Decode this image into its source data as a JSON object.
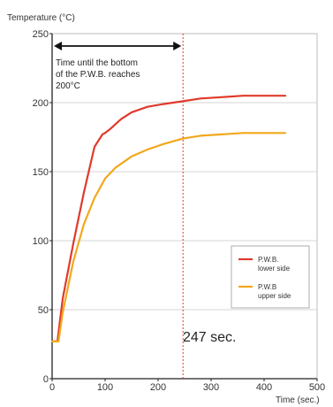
{
  "chart_data": {
    "type": "line",
    "ylabel": "Temperature (°C)",
    "xlabel": "Time (sec.)",
    "xlim": [
      0,
      500
    ],
    "ylim": [
      0,
      250
    ],
    "x_ticks": [
      "0",
      "100",
      "200",
      "300",
      "400",
      "500"
    ],
    "y_ticks": [
      "0",
      "50",
      "100",
      "150",
      "200",
      "250"
    ],
    "grid": "horizontal",
    "legend_position": "lower-right",
    "series": [
      {
        "name": "P.W.B. lower side",
        "color": "#e03a2b",
        "x": [
          0,
          10,
          20,
          40,
          60,
          80,
          95,
          100,
          110,
          130,
          150,
          180,
          210,
          247,
          280,
          320,
          360,
          400,
          440
        ],
        "y": [
          27,
          27,
          58,
          98,
          135,
          168,
          177,
          178,
          181,
          188,
          193,
          197,
          199,
          201,
          203,
          204,
          205,
          205,
          205
        ]
      },
      {
        "name": "P.W.B upper side",
        "color": "#f2a81d",
        "x": [
          0,
          12,
          20,
          40,
          60,
          80,
          100,
          120,
          150,
          180,
          210,
          247,
          280,
          320,
          360,
          400,
          440
        ],
        "y": [
          27,
          27,
          48,
          85,
          112,
          131,
          145,
          153,
          161,
          166,
          170,
          174,
          176,
          177,
          178,
          178,
          178
        ]
      }
    ],
    "annotations": {
      "marker_x": 247,
      "marker_label": "247 sec.",
      "span_text": [
        "Time until the bottom",
        "of the P.W.B. reaches",
        "200°C"
      ]
    }
  }
}
